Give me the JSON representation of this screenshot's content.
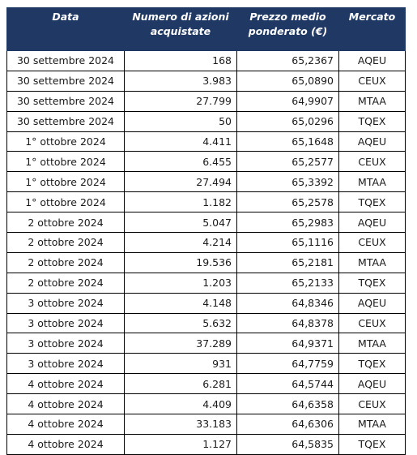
{
  "headers": {
    "date": "Data",
    "shares_line1": "Numero di azioni",
    "shares_line2": "acquistate",
    "price_line1": "Prezzo medio",
    "price_line2": "ponderato (€)",
    "market": "Mercato"
  },
  "rows": [
    {
      "date": "30 settembre 2024",
      "shares": "168",
      "price": "65,2367",
      "market": "AQEU"
    },
    {
      "date": "30 settembre 2024",
      "shares": "3.983",
      "price": "65,0890",
      "market": "CEUX"
    },
    {
      "date": "30 settembre 2024",
      "shares": "27.799",
      "price": "64,9907",
      "market": "MTAA"
    },
    {
      "date": "30 settembre 2024",
      "shares": "50",
      "price": "65,0296",
      "market": "TQEX"
    },
    {
      "date": "1° ottobre 2024",
      "shares": "4.411",
      "price": "65,1648",
      "market": "AQEU"
    },
    {
      "date": "1° ottobre 2024",
      "shares": "6.455",
      "price": "65,2577",
      "market": "CEUX"
    },
    {
      "date": "1° ottobre 2024",
      "shares": "27.494",
      "price": "65,3392",
      "market": "MTAA"
    },
    {
      "date": "1° ottobre 2024",
      "shares": "1.182",
      "price": "65,2578",
      "market": "TQEX"
    },
    {
      "date": "2 ottobre 2024",
      "shares": "5.047",
      "price": "65,2983",
      "market": "AQEU"
    },
    {
      "date": "2 ottobre 2024",
      "shares": "4.214",
      "price": "65,1116",
      "market": "CEUX"
    },
    {
      "date": "2 ottobre 2024",
      "shares": "19.536",
      "price": "65,2181",
      "market": "MTAA"
    },
    {
      "date": "2 ottobre 2024",
      "shares": "1.203",
      "price": "65,2133",
      "market": "TQEX"
    },
    {
      "date": "3 ottobre 2024",
      "shares": "4.148",
      "price": "64,8346",
      "market": "AQEU"
    },
    {
      "date": "3 ottobre 2024",
      "shares": "5.632",
      "price": "64,8378",
      "market": "CEUX"
    },
    {
      "date": "3 ottobre 2024",
      "shares": "37.289",
      "price": "64,9371",
      "market": "MTAA"
    },
    {
      "date": "3 ottobre 2024",
      "shares": "931",
      "price": "64,7759",
      "market": "TQEX"
    },
    {
      "date": "4 ottobre 2024",
      "shares": "6.281",
      "price": "64,5744",
      "market": "AQEU"
    },
    {
      "date": "4 ottobre 2024",
      "shares": "4.409",
      "price": "64,6358",
      "market": "CEUX"
    },
    {
      "date": "4 ottobre 2024",
      "shares": "33.183",
      "price": "64,6306",
      "market": "MTAA"
    },
    {
      "date": "4 ottobre 2024",
      "shares": "1.127",
      "price": "64,5835",
      "market": "TQEX"
    }
  ]
}
